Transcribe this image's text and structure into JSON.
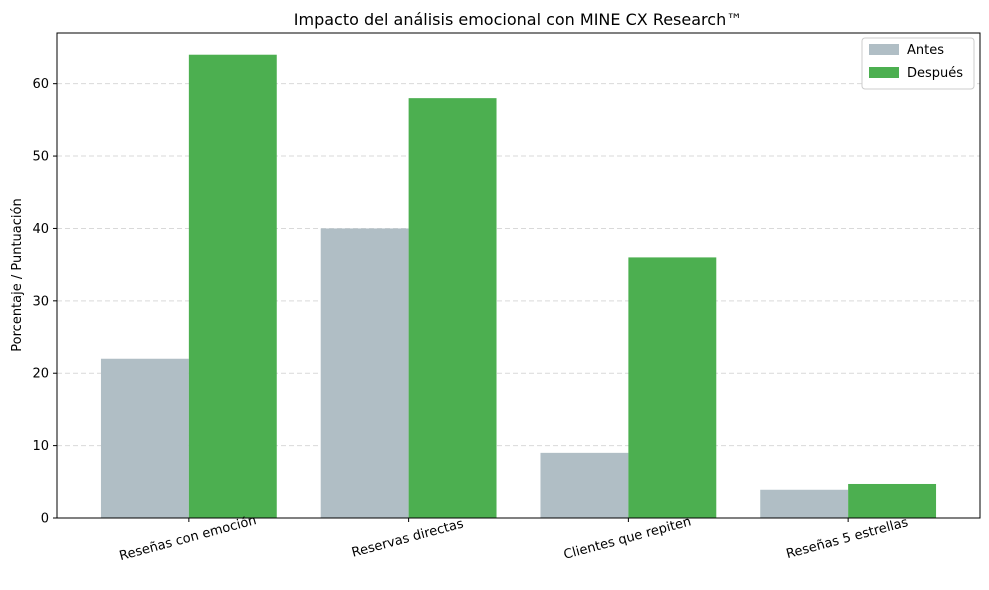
{
  "chart_data": {
    "type": "bar",
    "title": "Impacto del análisis emocional con MINE CX Research™",
    "xlabel": "",
    "ylabel": "Porcentaje / Puntuación",
    "ylim": [
      0,
      67
    ],
    "yticks": [
      0,
      10,
      20,
      30,
      40,
      50,
      60
    ],
    "grid": true,
    "legend_position": "top-right",
    "categories": [
      "Reseñas con emoción",
      "Reservas directas",
      "Clientes que repiten",
      "Reseñas 5 estrellas"
    ],
    "series": [
      {
        "name": "Antes",
        "color": "#b0bec5",
        "values": [
          22,
          40,
          9,
          3.9
        ]
      },
      {
        "name": "Después",
        "color": "#4caf50",
        "values": [
          64,
          58,
          36,
          4.7
        ]
      }
    ]
  }
}
